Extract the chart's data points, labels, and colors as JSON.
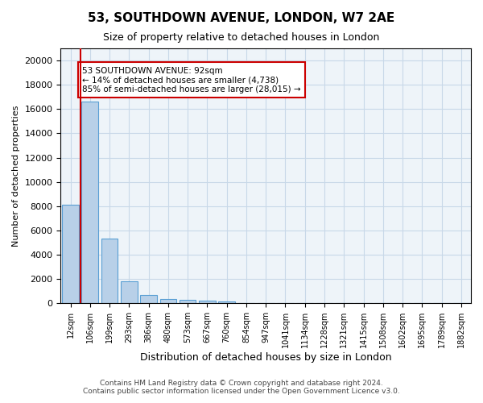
{
  "title": "53, SOUTHDOWN AVENUE, LONDON, W7 2AE",
  "subtitle": "Size of property relative to detached houses in London",
  "xlabel": "Distribution of detached houses by size in London",
  "ylabel": "Number of detached properties",
  "bar_categories": [
    "12sqm",
    "106sqm",
    "199sqm",
    "293sqm",
    "386sqm",
    "480sqm",
    "573sqm",
    "667sqm",
    "760sqm",
    "854sqm",
    "947sqm",
    "1041sqm",
    "1134sqm",
    "1228sqm",
    "1321sqm",
    "1415sqm",
    "1508sqm",
    "1602sqm",
    "1695sqm",
    "1789sqm",
    "1882sqm"
  ],
  "bar_values": [
    8100,
    16600,
    5300,
    1800,
    700,
    380,
    280,
    200,
    180,
    0,
    0,
    0,
    0,
    0,
    0,
    0,
    0,
    0,
    0,
    0,
    0
  ],
  "bar_color": "#b8d0e8",
  "bar_edge_color": "#5a9fd4",
  "background_color": "#ffffff",
  "grid_color": "#c8d8e8",
  "annotation_text": "53 SOUTHDOWN AVENUE: 92sqm\n← 14% of detached houses are smaller (4,738)\n85% of semi-detached houses are larger (28,015) →",
  "annotation_box_color": "#ffffff",
  "annotation_box_edge_color": "#cc0000",
  "property_line_x": 0.92,
  "property_line_color": "#cc0000",
  "ylim": [
    0,
    21000
  ],
  "yticks": [
    0,
    2000,
    4000,
    6000,
    8000,
    10000,
    12000,
    14000,
    16000,
    18000,
    20000
  ],
  "footer_line1": "Contains HM Land Registry data © Crown copyright and database right 2024.",
  "footer_line2": "Contains public sector information licensed under the Open Government Licence v3.0."
}
